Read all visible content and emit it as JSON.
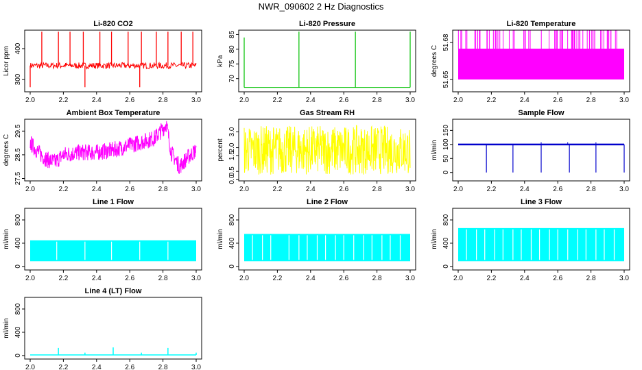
{
  "figure": {
    "title": "NWR_090602  2 Hz Diagnostics"
  },
  "chart_data": [
    {
      "type": "line",
      "title": "Li-820 CO2",
      "ylabel": "Licor ppm",
      "color": "#ff0000",
      "xlim": [
        2.0,
        3.0
      ],
      "ylim": [
        260,
        460
      ],
      "xticks": [
        "2.0",
        "2.2",
        "2.4",
        "2.6",
        "2.8",
        "3.0"
      ],
      "yticks": [
        "300",
        "400"
      ],
      "series": [
        {
          "values": {
            "baseline": 345,
            "noise": [
              335,
              355
            ],
            "spikes_up_at": [
              2.07,
              2.17,
              2.24,
              2.32,
              2.42,
              2.49,
              2.59,
              2.67,
              2.76,
              2.83,
              2.91,
              2.98
            ],
            "spike_up_to": 455,
            "spikes_down_at": [
              2.0,
              2.33,
              2.66
            ],
            "spike_down_to": 275
          }
        }
      ]
    },
    {
      "type": "line",
      "title": "Li-820 Pressure",
      "ylabel": "kPa",
      "color": "#00c000",
      "xlim": [
        2.0,
        3.0
      ],
      "ylim": [
        65.5,
        86.5
      ],
      "xticks": [
        "2.0",
        "2.2",
        "2.4",
        "2.6",
        "2.8",
        "3.0"
      ],
      "yticks": [
        "70",
        "75",
        "80",
        "85"
      ],
      "series": [
        {
          "values": {
            "baseline": 67.0,
            "spikes_at": [
              2.0,
              2.33,
              2.67,
              3.0
            ],
            "spike_to": [
              84,
              86,
              86,
              86
            ]
          }
        }
      ]
    },
    {
      "type": "line",
      "title": "Li-820 Temperature",
      "ylabel": "degrees C",
      "color": "#ff00ff",
      "xlim": [
        2.0,
        3.0
      ],
      "ylim": [
        51.64,
        51.69
      ],
      "xticks": [
        "2.0",
        "2.2",
        "2.4",
        "2.6",
        "2.8",
        "3.0"
      ],
      "yticks": [
        "51.65",
        "51.68"
      ],
      "series": [
        {
          "values": {
            "levels": [
              51.65,
              51.675,
              51.69
            ]
          }
        }
      ]
    },
    {
      "type": "line",
      "title": "Ambient Box Temperature",
      "ylabel": "degrees C",
      "color": "#ff00ff",
      "xlim": [
        2.0,
        3.0
      ],
      "ylim": [
        27.4,
        30.0
      ],
      "xticks": [
        "2.0",
        "2.2",
        "2.4",
        "2.6",
        "2.8",
        "3.0"
      ],
      "yticks": [
        "27.5",
        "28.5",
        "29.5"
      ],
      "series": [
        {
          "values": {
            "x": [
              2.0,
              2.05,
              2.1,
              2.15,
              2.2,
              2.3,
              2.4,
              2.5,
              2.55,
              2.6,
              2.65,
              2.7,
              2.75,
              2.8,
              2.82,
              2.85,
              2.9,
              2.95,
              3.0
            ],
            "y": [
              29.0,
              28.6,
              28.3,
              28.2,
              28.5,
              28.6,
              28.6,
              28.7,
              28.8,
              28.9,
              29.0,
              29.1,
              29.2,
              29.6,
              29.8,
              28.6,
              28.0,
              28.4,
              28.7
            ],
            "noise": 0.35
          }
        }
      ]
    },
    {
      "type": "line",
      "title": "Gas Stream RH",
      "ylabel": "percent",
      "color": "#ffff00",
      "xlim": [
        2.0,
        3.0
      ],
      "ylim": [
        -0.1,
        3.8
      ],
      "xticks": [
        "2.0",
        "2.2",
        "2.4",
        "2.6",
        "2.8",
        "3.0"
      ],
      "yticks": [
        "0.0",
        "0.5",
        "1.5",
        "2.0",
        "3.0"
      ],
      "series": [
        {
          "values": {
            "band": [
              0.3,
              3.4
            ],
            "mean": 1.7
          }
        }
      ]
    },
    {
      "type": "line",
      "title": "Sample Flow",
      "ylabel": "ml/min",
      "color": "#0000cc",
      "xlim": [
        2.0,
        3.0
      ],
      "ylim": [
        -30,
        190
      ],
      "xticks": [
        "2.0",
        "2.2",
        "2.4",
        "2.6",
        "2.8",
        "3.0"
      ],
      "yticks": [
        "0",
        "50",
        "100",
        "150"
      ],
      "series": [
        {
          "values": {
            "baseline": 100,
            "dips_at": [
              2.17,
              2.33,
              2.5,
              2.67,
              2.83,
              3.0
            ],
            "dip_to": 0,
            "spikes_at": [
              2.5,
              2.66,
              2.83
            ],
            "spike_to": 108
          }
        }
      ]
    },
    {
      "type": "area",
      "title": "Line 1 Flow",
      "ylabel": "ml/min",
      "color": "#00ffff",
      "xlim": [
        2.0,
        3.0
      ],
      "ylim": [
        -60,
        1000
      ],
      "xticks": [
        "2.0",
        "2.2",
        "2.4",
        "2.6",
        "2.8",
        "3.0"
      ],
      "yticks": [
        "0",
        "400",
        "800"
      ],
      "series": [
        {
          "values": {
            "top": 450,
            "bottom": 90,
            "gaps_at": [
              2.16,
              2.33,
              2.49,
              2.66,
              2.83
            ]
          }
        }
      ]
    },
    {
      "type": "area",
      "title": "Line 2 Flow",
      "ylabel": "ml/min",
      "color": "#00ffff",
      "xlim": [
        2.0,
        3.0
      ],
      "ylim": [
        -60,
        1000
      ],
      "xticks": [
        "2.0",
        "2.2",
        "2.4",
        "2.6",
        "2.8",
        "3.0"
      ],
      "yticks": [
        "0",
        "400",
        "800"
      ],
      "series": [
        {
          "values": {
            "top": 560,
            "bottom": 90,
            "gaps_at": [
              2.05,
              2.11,
              2.16,
              2.27,
              2.33,
              2.38,
              2.44,
              2.49,
              2.55,
              2.6,
              2.66,
              2.72,
              2.77,
              2.83,
              2.88,
              2.94
            ]
          }
        }
      ]
    },
    {
      "type": "area",
      "title": "Line 3 Flow",
      "ylabel": "ml/min",
      "color": "#00ffff",
      "xlim": [
        2.0,
        3.0
      ],
      "ylim": [
        -60,
        1000
      ],
      "xticks": [
        "2.0",
        "2.2",
        "2.4",
        "2.6",
        "2.8",
        "3.0"
      ],
      "yticks": [
        "0",
        "400",
        "800"
      ],
      "series": [
        {
          "values": {
            "top": 660,
            "bottom": 90,
            "gaps_at": [
              2.05,
              2.11,
              2.16,
              2.22,
              2.27,
              2.33,
              2.38,
              2.44,
              2.49,
              2.55,
              2.6,
              2.66,
              2.72,
              2.77,
              2.83,
              2.88,
              2.94
            ]
          }
        }
      ]
    },
    {
      "type": "line",
      "title": "Line 4 (LT) Flow",
      "ylabel": "ml/min",
      "color": "#00ffff",
      "xlim": [
        2.0,
        3.0
      ],
      "ylim": [
        -60,
        1000
      ],
      "xticks": [
        "2.0",
        "2.2",
        "2.4",
        "2.6",
        "2.8",
        "3.0"
      ],
      "yticks": [
        "0",
        "400",
        "800"
      ],
      "series": [
        {
          "values": {
            "baseline": 10,
            "spikes_at": [
              2.17,
              2.33,
              2.5,
              2.67,
              2.83,
              3.0
            ],
            "spike_to": [
              130,
              50,
              140,
              50,
              130,
              50
            ]
          }
        }
      ]
    }
  ]
}
